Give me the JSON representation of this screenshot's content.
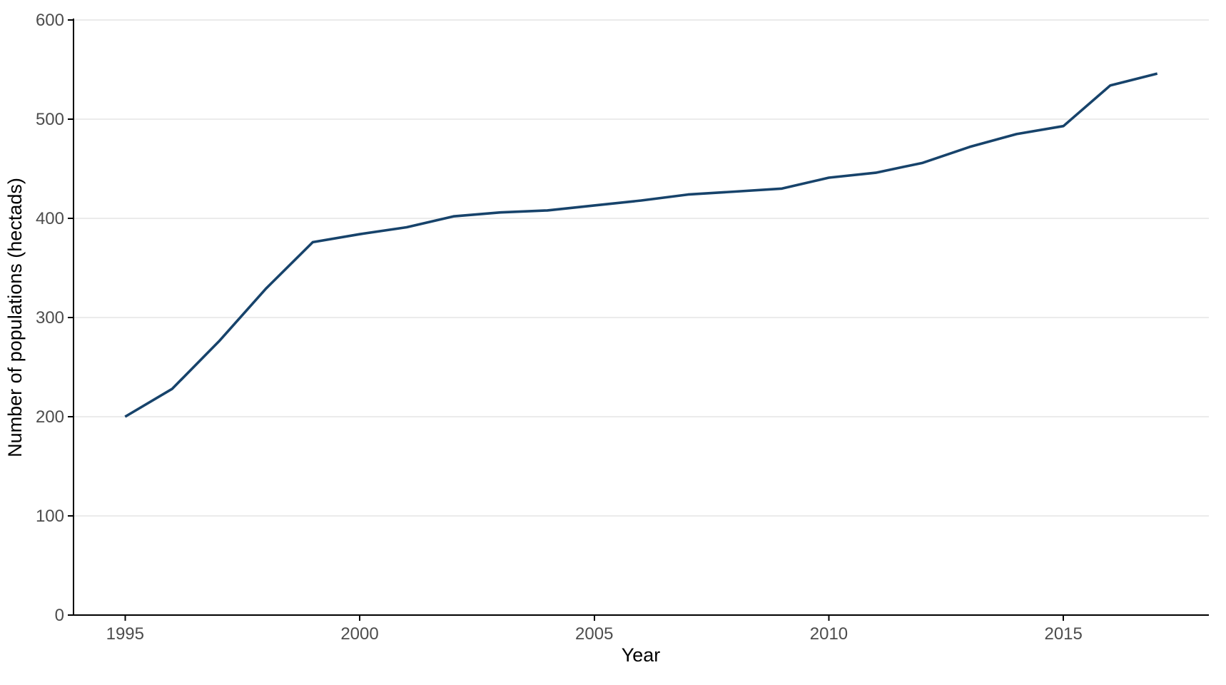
{
  "page": {
    "background": "#ffffff"
  },
  "chart_data": {
    "type": "line",
    "title": "",
    "xlabel": "Year",
    "ylabel": "Number of populations (hectads)",
    "x": [
      1995,
      1996,
      1997,
      1998,
      1999,
      2000,
      2001,
      2002,
      2003,
      2004,
      2005,
      2006,
      2007,
      2008,
      2009,
      2010,
      2011,
      2012,
      2013,
      2014,
      2015,
      2016,
      2017
    ],
    "values": [
      200,
      228,
      276,
      329,
      376,
      384,
      391,
      402,
      406,
      408,
      413,
      418,
      424,
      427,
      430,
      441,
      446,
      456,
      472,
      485,
      493,
      534,
      546
    ],
    "x_ticks": [
      1995,
      2000,
      2005,
      2010,
      2015
    ],
    "y_ticks": [
      0,
      100,
      200,
      300,
      400,
      500,
      600
    ],
    "xlim": [
      1993.9,
      2018.1
    ],
    "ylim": [
      0,
      600
    ],
    "grid": "horizontal-major-only",
    "legend": "none",
    "line_color": "#17436b",
    "grid_color": "#ebebeb",
    "axis_color": "#000000",
    "tick_label_color": "#4d4d4d",
    "axis_title_color": "#000000"
  }
}
